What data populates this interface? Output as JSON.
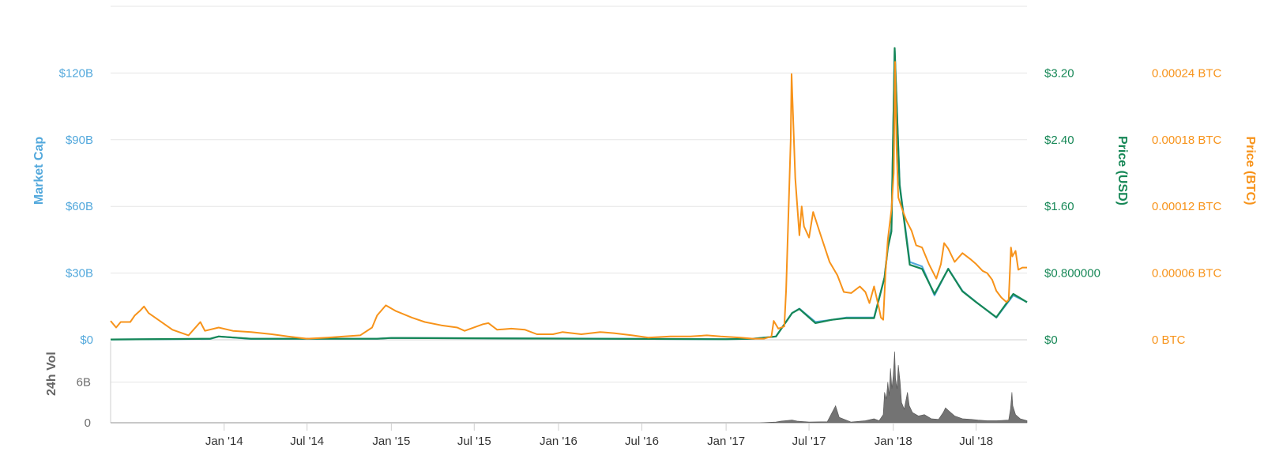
{
  "chart_data": {
    "type": "line",
    "x_axis": {
      "range": [
        "2013-04-28",
        "2018-10-20"
      ],
      "tick_labels": [
        "Jan '14",
        "Jul '14",
        "Jan '15",
        "Jul '15",
        "Jan '16",
        "Jul '16",
        "Jan '17",
        "Jul '17",
        "Jan '18",
        "Jul '18"
      ],
      "tick_dates": [
        "2014-01-01",
        "2014-07-01",
        "2015-01-01",
        "2015-07-01",
        "2016-01-01",
        "2016-07-01",
        "2017-01-01",
        "2017-07-01",
        "2018-01-01",
        "2018-07-01"
      ]
    },
    "axes": {
      "market_cap": {
        "title": "Market Cap",
        "range": [
          0,
          150
        ],
        "tick_values": [
          0,
          30,
          60,
          90,
          120
        ],
        "tick_labels": [
          "$0",
          "$30B",
          "$60B",
          "$90B",
          "$120B"
        ],
        "color": "#52a8dc"
      },
      "price_usd": {
        "title": "Price (USD)",
        "range": [
          0,
          4
        ],
        "tick_values": [
          0,
          0.8,
          1.6,
          2.4,
          3.2
        ],
        "tick_labels": [
          "$0",
          "$0.800000",
          "$1.60",
          "$2.40",
          "$3.20"
        ],
        "color": "#168756"
      },
      "price_btc": {
        "title": "Price (BTC)",
        "range": [
          0,
          0.0003
        ],
        "tick_values": [
          0,
          6e-05,
          0.00012,
          0.00018,
          0.00024
        ],
        "tick_labels": [
          "0 BTC",
          "0.00006 BTC",
          "0.00012 BTC",
          "0.00018 BTC",
          "0.00024 BTC"
        ],
        "color": "#f7931a"
      },
      "volume": {
        "title": "24h Vol",
        "range": [
          0,
          12
        ],
        "tick_values": [
          0,
          6
        ],
        "tick_labels": [
          "0",
          "6B"
        ],
        "color": "#6d6d6d"
      }
    },
    "grid": true,
    "legend": "none",
    "series": [
      {
        "axis": "market_cap",
        "color": "#52a8dc",
        "points": [
          [
            "2013-04-28",
            0.15
          ],
          [
            "2013-12-01",
            0.4
          ],
          [
            "2013-12-20",
            1.5
          ],
          [
            "2014-03-01",
            0.4
          ],
          [
            "2014-12-01",
            0.5
          ],
          [
            "2015-01-01",
            0.8
          ],
          [
            "2016-12-31",
            0.3
          ],
          [
            "2017-03-01",
            0.5
          ],
          [
            "2017-04-20",
            1.5
          ],
          [
            "2017-05-25",
            12
          ],
          [
            "2017-06-10",
            14
          ],
          [
            "2017-07-15",
            8
          ],
          [
            "2017-08-20",
            9
          ],
          [
            "2017-09-20",
            10
          ],
          [
            "2017-11-20",
            10
          ],
          [
            "2017-12-13",
            28
          ],
          [
            "2017-12-20",
            42
          ],
          [
            "2017-12-28",
            50
          ],
          [
            "2018-01-04",
            130
          ],
          [
            "2018-01-15",
            70
          ],
          [
            "2018-02-06",
            35
          ],
          [
            "2018-03-05",
            33
          ],
          [
            "2018-04-01",
            20
          ],
          [
            "2018-05-01",
            32
          ],
          [
            "2018-06-01",
            22
          ],
          [
            "2018-07-01",
            17
          ],
          [
            "2018-08-14",
            10
          ],
          [
            "2018-09-20",
            20
          ],
          [
            "2018-10-20",
            17
          ]
        ]
      },
      {
        "axis": "price_usd",
        "color": "#168756",
        "points": [
          [
            "2013-04-28",
            0.004
          ],
          [
            "2013-12-01",
            0.012
          ],
          [
            "2013-12-20",
            0.04
          ],
          [
            "2014-03-01",
            0.012
          ],
          [
            "2014-12-01",
            0.012
          ],
          [
            "2015-01-01",
            0.022
          ],
          [
            "2016-12-31",
            0.007
          ],
          [
            "2017-03-01",
            0.012
          ],
          [
            "2017-04-20",
            0.04
          ],
          [
            "2017-05-25",
            0.32
          ],
          [
            "2017-06-10",
            0.37
          ],
          [
            "2017-07-15",
            0.2
          ],
          [
            "2017-08-20",
            0.24
          ],
          [
            "2017-09-20",
            0.26
          ],
          [
            "2017-11-20",
            0.26
          ],
          [
            "2017-12-13",
            0.75
          ],
          [
            "2017-12-20",
            1.1
          ],
          [
            "2017-12-28",
            1.3
          ],
          [
            "2018-01-04",
            3.5
          ],
          [
            "2018-01-15",
            1.85
          ],
          [
            "2018-02-06",
            0.9
          ],
          [
            "2018-03-05",
            0.85
          ],
          [
            "2018-04-01",
            0.55
          ],
          [
            "2018-05-01",
            0.85
          ],
          [
            "2018-06-01",
            0.58
          ],
          [
            "2018-07-01",
            0.45
          ],
          [
            "2018-08-14",
            0.27
          ],
          [
            "2018-09-20",
            0.55
          ],
          [
            "2018-10-20",
            0.45
          ]
        ]
      },
      {
        "axis": "price_btc",
        "color": "#f7931a",
        "points": [
          [
            "2013-04-28",
            1.7e-05
          ],
          [
            "2013-05-10",
            1.1e-05
          ],
          [
            "2013-05-20",
            1.6e-05
          ],
          [
            "2013-06-10",
            1.6e-05
          ],
          [
            "2013-06-20",
            2.2e-05
          ],
          [
            "2013-07-01",
            2.6e-05
          ],
          [
            "2013-07-10",
            3e-05
          ],
          [
            "2013-07-20",
            2.4e-05
          ],
          [
            "2013-08-10",
            1.8e-05
          ],
          [
            "2013-09-10",
            9e-06
          ],
          [
            "2013-10-15",
            4e-06
          ],
          [
            "2013-11-10",
            1.6e-05
          ],
          [
            "2013-11-20",
            8e-06
          ],
          [
            "2013-12-20",
            1.1e-05
          ],
          [
            "2014-01-20",
            8e-06
          ],
          [
            "2014-03-01",
            7e-06
          ],
          [
            "2014-04-15",
            5e-06
          ],
          [
            "2014-05-20",
            3e-06
          ],
          [
            "2014-07-01",
            1e-06
          ],
          [
            "2014-08-15",
            2e-06
          ],
          [
            "2014-09-20",
            3e-06
          ],
          [
            "2014-10-25",
            4e-06
          ],
          [
            "2014-11-20",
            1.1e-05
          ],
          [
            "2014-12-01",
            2.2e-05
          ],
          [
            "2014-12-20",
            3.1e-05
          ],
          [
            "2015-01-10",
            2.6e-05
          ],
          [
            "2015-02-15",
            2e-05
          ],
          [
            "2015-03-15",
            1.6e-05
          ],
          [
            "2015-04-20",
            1.3e-05
          ],
          [
            "2015-05-25",
            1.1e-05
          ],
          [
            "2015-06-10",
            8e-06
          ],
          [
            "2015-07-20",
            1.4e-05
          ],
          [
            "2015-08-01",
            1.5e-05
          ],
          [
            "2015-08-20",
            9e-06
          ],
          [
            "2015-09-20",
            1e-05
          ],
          [
            "2015-10-20",
            9e-06
          ],
          [
            "2015-11-15",
            5e-06
          ],
          [
            "2015-12-20",
            5e-06
          ],
          [
            "2016-01-10",
            7e-06
          ],
          [
            "2016-02-20",
            5e-06
          ],
          [
            "2016-04-01",
            7e-06
          ],
          [
            "2016-05-01",
            6e-06
          ],
          [
            "2016-06-10",
            4e-06
          ],
          [
            "2016-07-15",
            2e-06
          ],
          [
            "2016-09-01",
            3e-06
          ],
          [
            "2016-10-15",
            3e-06
          ],
          [
            "2016-11-20",
            4e-06
          ],
          [
            "2016-12-20",
            3e-06
          ],
          [
            "2017-02-01",
            2e-06
          ],
          [
            "2017-03-01",
            1e-06
          ],
          [
            "2017-03-25",
            1e-06
          ],
          [
            "2017-04-10",
            3e-06
          ],
          [
            "2017-04-15",
            1.7e-05
          ],
          [
            "2017-04-25",
            1e-05
          ],
          [
            "2017-05-08",
            1.2e-05
          ],
          [
            "2017-05-12",
            4.5e-05
          ],
          [
            "2017-05-22",
            0.00018
          ],
          [
            "2017-05-24",
            0.000239
          ],
          [
            "2017-06-01",
            0.000145
          ],
          [
            "2017-06-10",
            9.4e-05
          ],
          [
            "2017-06-15",
            0.00012
          ],
          [
            "2017-06-20",
            0.000102
          ],
          [
            "2017-07-01",
            9.2e-05
          ],
          [
            "2017-07-10",
            0.000115
          ],
          [
            "2017-07-25",
            9.6e-05
          ],
          [
            "2017-08-15",
            7e-05
          ],
          [
            "2017-09-01",
            5.8e-05
          ],
          [
            "2017-09-15",
            4.3e-05
          ],
          [
            "2017-10-01",
            4.2e-05
          ],
          [
            "2017-10-20",
            4.8e-05
          ],
          [
            "2017-11-01",
            4.3e-05
          ],
          [
            "2017-11-10",
            3.3e-05
          ],
          [
            "2017-11-20",
            4.8e-05
          ],
          [
            "2017-12-01",
            2.8e-05
          ],
          [
            "2017-12-05",
            2e-05
          ],
          [
            "2017-12-10",
            1.8e-05
          ],
          [
            "2017-12-15",
            6e-05
          ],
          [
            "2017-12-20",
            9e-05
          ],
          [
            "2017-12-28",
            0.000117
          ],
          [
            "2018-01-02",
            0.00015
          ],
          [
            "2018-01-05",
            0.00025
          ],
          [
            "2018-01-08",
            0.000175
          ],
          [
            "2018-01-12",
            0.000128
          ],
          [
            "2018-01-20",
            0.000118
          ],
          [
            "2018-01-30",
            0.000107
          ],
          [
            "2018-02-10",
            9.8e-05
          ],
          [
            "2018-02-20",
            8.5e-05
          ],
          [
            "2018-03-05",
            8.3e-05
          ],
          [
            "2018-03-20",
            6.8e-05
          ],
          [
            "2018-04-05",
            5.5e-05
          ],
          [
            "2018-04-15",
            6.8e-05
          ],
          [
            "2018-04-22",
            8.7e-05
          ],
          [
            "2018-05-01",
            8.2e-05
          ],
          [
            "2018-05-15",
            7e-05
          ],
          [
            "2018-06-01",
            7.8e-05
          ],
          [
            "2018-06-20",
            7.2e-05
          ],
          [
            "2018-07-01",
            6.8e-05
          ],
          [
            "2018-07-15",
            6.2e-05
          ],
          [
            "2018-07-25",
            6e-05
          ],
          [
            "2018-08-05",
            5.4e-05
          ],
          [
            "2018-08-14",
            4.4e-05
          ],
          [
            "2018-08-25",
            3.8e-05
          ],
          [
            "2018-09-05",
            3.4e-05
          ],
          [
            "2018-09-10",
            3.6e-05
          ],
          [
            "2018-09-15",
            8.3e-05
          ],
          [
            "2018-09-18",
            7.5e-05
          ],
          [
            "2018-09-25",
            8e-05
          ],
          [
            "2018-10-01",
            6.3e-05
          ],
          [
            "2018-10-10",
            6.5e-05
          ],
          [
            "2018-10-20",
            6.5e-05
          ]
        ]
      },
      {
        "axis": "volume",
        "color": "#737373",
        "type": "area",
        "points": [
          [
            "2013-04-28",
            0
          ],
          [
            "2017-03-15",
            0
          ],
          [
            "2017-04-20",
            0.1
          ],
          [
            "2017-05-01",
            0.25
          ],
          [
            "2017-05-25",
            0.4
          ],
          [
            "2017-06-05",
            0.25
          ],
          [
            "2017-07-01",
            0.1
          ],
          [
            "2017-08-10",
            0.15
          ],
          [
            "2017-08-28",
            2.5
          ],
          [
            "2017-09-05",
            0.8
          ],
          [
            "2017-10-01",
            0.1
          ],
          [
            "2017-11-01",
            0.3
          ],
          [
            "2017-11-20",
            0.6
          ],
          [
            "2017-12-01",
            0.3
          ],
          [
            "2017-12-10",
            1.2
          ],
          [
            "2017-12-13",
            4.5
          ],
          [
            "2017-12-17",
            3.5
          ],
          [
            "2017-12-20",
            6
          ],
          [
            "2017-12-23",
            4
          ],
          [
            "2017-12-26",
            8
          ],
          [
            "2017-12-29",
            5
          ],
          [
            "2018-01-01",
            7
          ],
          [
            "2018-01-04",
            10.5
          ],
          [
            "2018-01-06",
            6.5
          ],
          [
            "2018-01-09",
            5
          ],
          [
            "2018-01-12",
            8.5
          ],
          [
            "2018-01-16",
            6
          ],
          [
            "2018-01-19",
            3
          ],
          [
            "2018-01-25",
            2
          ],
          [
            "2018-02-01",
            4.5
          ],
          [
            "2018-02-05",
            2.5
          ],
          [
            "2018-02-12",
            1.5
          ],
          [
            "2018-02-25",
            1
          ],
          [
            "2018-03-10",
            1.2
          ],
          [
            "2018-03-25",
            0.6
          ],
          [
            "2018-04-10",
            0.5
          ],
          [
            "2018-04-20",
            1.5
          ],
          [
            "2018-04-25",
            2.2
          ],
          [
            "2018-05-05",
            1.6
          ],
          [
            "2018-05-15",
            1
          ],
          [
            "2018-06-01",
            0.6
          ],
          [
            "2018-06-20",
            0.5
          ],
          [
            "2018-07-05",
            0.4
          ],
          [
            "2018-07-25",
            0.3
          ],
          [
            "2018-08-15",
            0.3
          ],
          [
            "2018-09-10",
            0.4
          ],
          [
            "2018-09-14",
            2
          ],
          [
            "2018-09-17",
            4.5
          ],
          [
            "2018-09-19",
            2.5
          ],
          [
            "2018-09-25",
            1.2
          ],
          [
            "2018-10-05",
            0.6
          ],
          [
            "2018-10-20",
            0.3
          ]
        ]
      }
    ]
  }
}
